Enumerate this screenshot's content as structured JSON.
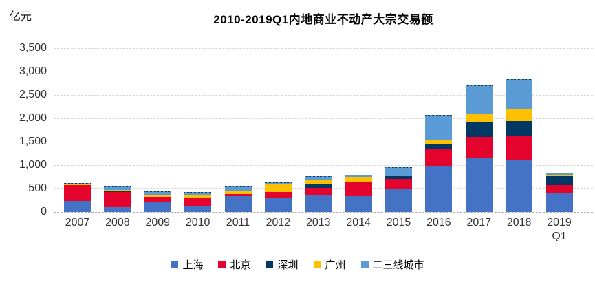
{
  "unit_label": "亿元",
  "title": "2010-2019Q1内地商业不动产大宗交易额",
  "chart_data": {
    "type": "bar",
    "stacked": true,
    "title": "2010-2019Q1内地商业不动产大宗交易额",
    "ylabel": "亿元",
    "xlabel": "",
    "ylim": [
      0,
      3500
    ],
    "ytick_step": 500,
    "yticks_values": [
      0,
      500,
      1000,
      1500,
      2000,
      2500,
      3000,
      3500
    ],
    "yticks_labels": [
      "0",
      "500",
      "1,000",
      "1,500",
      "2,000",
      "2,500",
      "3,000",
      "3,500"
    ],
    "grid": "horizontal-dashed",
    "legend_position": "bottom",
    "categories": [
      "2007",
      "2008",
      "2009",
      "2010",
      "2011",
      "2012",
      "2013",
      "2014",
      "2015",
      "2016",
      "2017",
      "2018",
      "2019 Q1"
    ],
    "series": [
      {
        "name": "上海",
        "color": "#4472C4",
        "border": "none",
        "values": [
          230,
          100,
          215,
          130,
          335,
          290,
          355,
          345,
          480,
          985,
          1140,
          1125,
          405
        ]
      },
      {
        "name": "北京",
        "color": "#E4032D",
        "border": "none",
        "values": [
          350,
          320,
          100,
          165,
          50,
          140,
          150,
          290,
          220,
          370,
          470,
          500,
          170
        ]
      },
      {
        "name": "深圳",
        "color": "#003863",
        "border": "none",
        "values": [
          0,
          20,
          0,
          0,
          0,
          0,
          85,
          0,
          70,
          105,
          315,
          320,
          185
        ]
      },
      {
        "name": "广州",
        "color": "#FFC000",
        "border": "none",
        "values": [
          25,
          30,
          60,
          60,
          60,
          155,
          85,
          110,
          0,
          85,
          185,
          240,
          40
        ]
      },
      {
        "name": "二三线城市",
        "color": "#5B9BD5",
        "border": "dotted",
        "values": [
          15,
          70,
          65,
          65,
          95,
          55,
          95,
          50,
          190,
          535,
          590,
          650,
          40
        ]
      }
    ],
    "totals": [
      620,
      540,
      440,
      420,
      540,
      640,
      770,
      795,
      960,
      2080,
      2700,
      2835,
      840
    ]
  }
}
